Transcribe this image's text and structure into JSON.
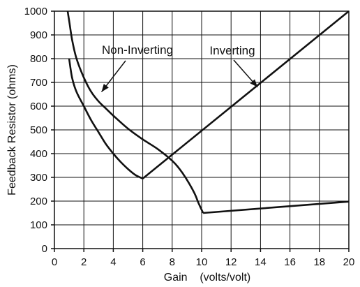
{
  "chart_data": {
    "type": "line",
    "title": "",
    "xlabel": "Gain    (volts/volt)",
    "ylabel": "Feedback Resistor (ohms)",
    "xlim": [
      0,
      20
    ],
    "ylim": [
      0,
      1000
    ],
    "x_ticks": [
      0,
      2,
      4,
      6,
      8,
      10,
      12,
      14,
      16,
      18,
      20
    ],
    "y_ticks": [
      0,
      100,
      200,
      300,
      400,
      500,
      600,
      700,
      800,
      900,
      1000
    ],
    "grid": true,
    "series": [
      {
        "id": "non-inverting-upper",
        "x": [
          0.9,
          1.0,
          1.2,
          1.5,
          2.0,
          2.5,
          3.0,
          3.5,
          4.0,
          5.0,
          6.0,
          7.0,
          8.0,
          8.5,
          9.0,
          9.5,
          9.8,
          10.1
        ],
        "values": [
          1000,
          960,
          880,
          800,
          720,
          660,
          620,
          590,
          560,
          505,
          460,
          420,
          370,
          335,
          290,
          235,
          190,
          150
        ]
      },
      {
        "id": "inverting-lower-branch",
        "x": [
          1.0,
          1.2,
          1.5,
          2.0,
          2.5,
          3.0,
          3.5,
          4.0,
          4.5,
          5.0,
          5.5,
          6.0
        ],
        "values": [
          800,
          720,
          660,
          600,
          540,
          490,
          440,
          400,
          365,
          335,
          310,
          295
        ]
      },
      {
        "id": "inverting-rising",
        "x": [
          6.0,
          20.0
        ],
        "values": [
          295,
          1000
        ]
      },
      {
        "id": "non-inverting-tail",
        "x": [
          10.1,
          20.0
        ],
        "values": [
          150,
          198
        ]
      }
    ],
    "annotations": [
      {
        "text": "Non-Inverting",
        "points_to": [
          3.2,
          660
        ]
      },
      {
        "text": "Inverting",
        "points_to": [
          13.8,
          680
        ]
      }
    ]
  }
}
